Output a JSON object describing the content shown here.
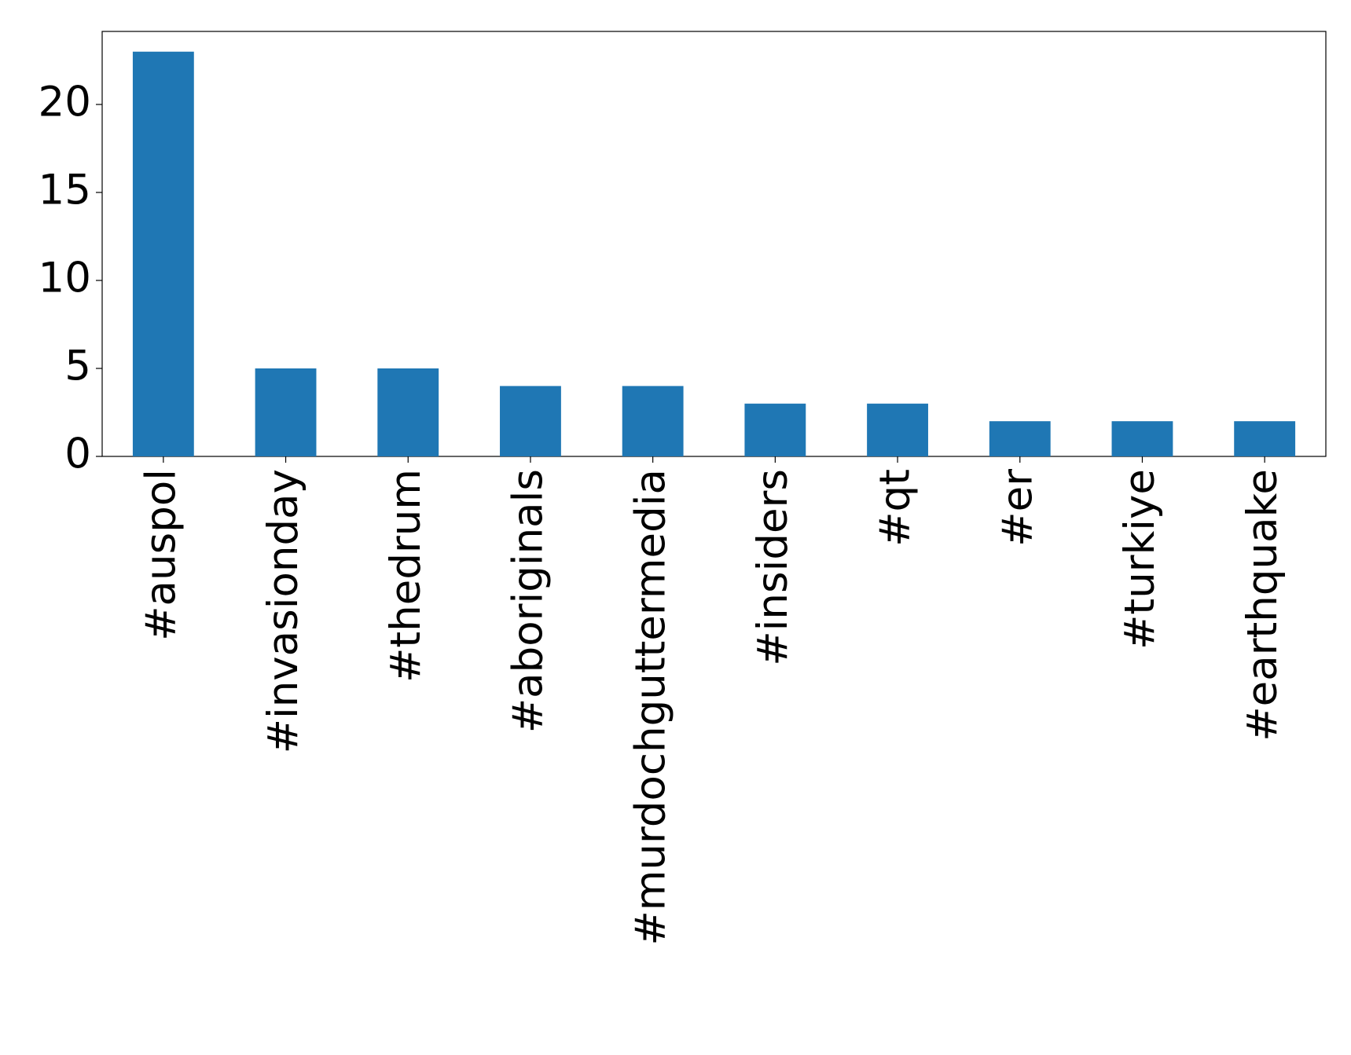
{
  "chart_data": {
    "type": "bar",
    "categories": [
      "#auspol",
      "#invasionday",
      "#thedrum",
      "#aboriginals",
      "#murdochguttermedia",
      "#insiders",
      "#qt",
      "#er",
      "#turkiye",
      "#earthquake"
    ],
    "values": [
      23,
      5,
      5,
      4,
      4,
      3,
      3,
      2,
      2,
      2
    ],
    "color": "#1f77b4",
    "ylim": [
      0,
      24.15
    ],
    "yticks": [
      0,
      5,
      10,
      15,
      20
    ],
    "grid": false
  }
}
